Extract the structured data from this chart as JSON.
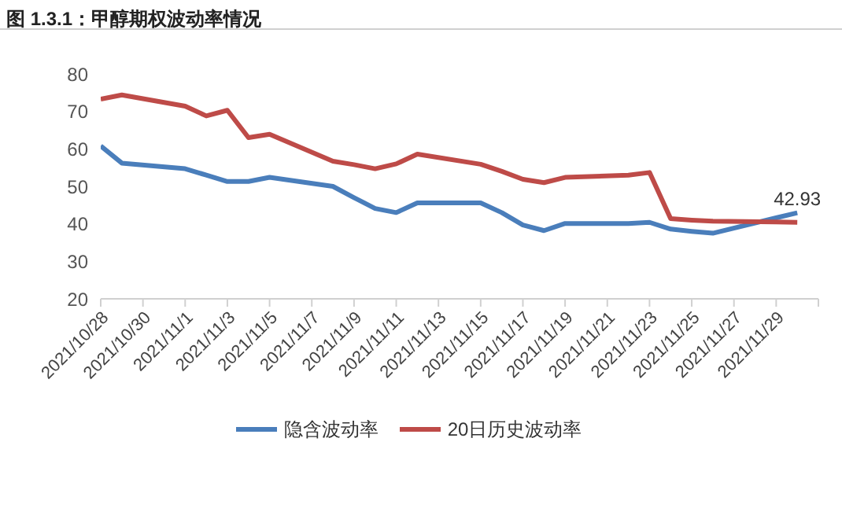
{
  "chart_data": {
    "type": "line",
    "title": "图 1.3.1：甲醇期权波动率情况",
    "x": [
      "2021-10-28",
      "2021-10-29",
      "2021-11-01",
      "2021-11-02",
      "2021-11-03",
      "2021-11-04",
      "2021-11-05",
      "2021-11-08",
      "2021-11-09",
      "2021-11-10",
      "2021-11-11",
      "2021-11-12",
      "2021-11-15",
      "2021-11-16",
      "2021-11-17",
      "2021-11-18",
      "2021-11-19",
      "2021-11-22",
      "2021-11-23",
      "2021-11-24",
      "2021-11-25",
      "2021-11-26",
      "2021-11-29",
      "2021-11-30"
    ],
    "series": [
      {
        "name": "隐含波动率",
        "color": "#4a7ebb",
        "values": [
          60.8,
          56.2,
          54.7,
          53,
          51.3,
          51.3,
          52.4,
          50,
          47,
          44.1,
          43,
          45.6,
          45.6,
          43,
          39.7,
          38.2,
          40.1,
          40.1,
          40.4,
          38.6,
          38,
          37.5,
          41.6,
          42.93
        ],
        "value_labels": [
          null,
          null,
          null,
          null,
          null,
          null,
          null,
          null,
          null,
          null,
          null,
          null,
          null,
          null,
          null,
          null,
          null,
          null,
          null,
          null,
          null,
          null,
          null,
          "42.93"
        ]
      },
      {
        "name": "20日历史波动率",
        "color": "#be4b48",
        "values": [
          73.3,
          74.4,
          71.4,
          68.8,
          70.3,
          63,
          63.9,
          56.7,
          55.8,
          54.7,
          56,
          58.6,
          55.9,
          54,
          51.9,
          51,
          52.4,
          53,
          53.7,
          41.4,
          41,
          40.7,
          40.5,
          40.4
        ]
      }
    ],
    "xlim": [
      "2021-10-28",
      "2021-12-01"
    ],
    "xticks": [
      {
        "value": "2021-10-28",
        "label": "2021/10/28"
      },
      {
        "value": "2021-10-30",
        "label": "2021/10/30"
      },
      {
        "value": "2021-11-01",
        "label": "2021/11/1"
      },
      {
        "value": "2021-11-03",
        "label": "2021/11/3"
      },
      {
        "value": "2021-11-05",
        "label": "2021/11/5"
      },
      {
        "value": "2021-11-07",
        "label": "2021/11/7"
      },
      {
        "value": "2021-11-09",
        "label": "2021/11/9"
      },
      {
        "value": "2021-11-11",
        "label": "2021/11/11"
      },
      {
        "value": "2021-11-13",
        "label": "2021/11/13"
      },
      {
        "value": "2021-11-15",
        "label": "2021/11/15"
      },
      {
        "value": "2021-11-17",
        "label": "2021/11/17"
      },
      {
        "value": "2021-11-19",
        "label": "2021/11/19"
      },
      {
        "value": "2021-11-21",
        "label": "2021/11/21"
      },
      {
        "value": "2021-11-23",
        "label": "2021/11/23"
      },
      {
        "value": "2021-11-25",
        "label": "2021/11/25"
      },
      {
        "value": "2021-11-27",
        "label": "2021/11/27"
      },
      {
        "value": "2021-11-29",
        "label": "2021/11/29"
      },
      {
        "value": "2021-12-01",
        "label": null
      }
    ],
    "ylim": [
      20,
      80
    ],
    "yticks": [
      20,
      30,
      40,
      50,
      60,
      70,
      80
    ],
    "grid": false,
    "legend": "bottom",
    "marker": "none",
    "line_style": "solid"
  }
}
